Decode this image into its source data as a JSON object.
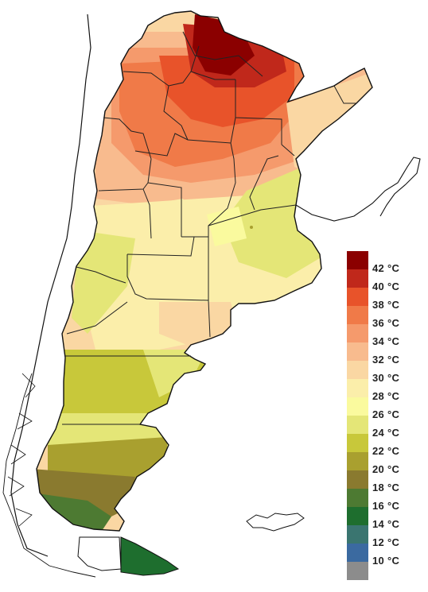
{
  "legend": {
    "items": [
      {
        "label": "42 °C",
        "color": "#8b0000"
      },
      {
        "label": "40 °C",
        "color": "#c0281b"
      },
      {
        "label": "38 °C",
        "color": "#e8532a"
      },
      {
        "label": "36 °C",
        "color": "#f07a48"
      },
      {
        "label": "34 °C",
        "color": "#f59a6c"
      },
      {
        "label": "32 °C",
        "color": "#f8bb8e"
      },
      {
        "label": "30 °C",
        "color": "#fad7a3"
      },
      {
        "label": "28 °C",
        "color": "#fbeeaa"
      },
      {
        "label": "26 °C",
        "color": "#fafa9e"
      },
      {
        "label": "24 °C",
        "color": "#e4e677"
      },
      {
        "label": "22 °C",
        "color": "#c8c83a"
      },
      {
        "label": "20 °C",
        "color": "#a9a02f"
      },
      {
        "label": "18 °C",
        "color": "#8a7a2f"
      },
      {
        "label": "16 °C",
        "color": "#4d7a32"
      },
      {
        "label": "14 °C",
        "color": "#1e6e2e"
      },
      {
        "label": "12 °C",
        "color": "#3a7570"
      },
      {
        "label": "10 °C",
        "color": "#3b6aa0"
      },
      {
        "label": "",
        "color": "#8c8c8c"
      }
    ]
  }
}
